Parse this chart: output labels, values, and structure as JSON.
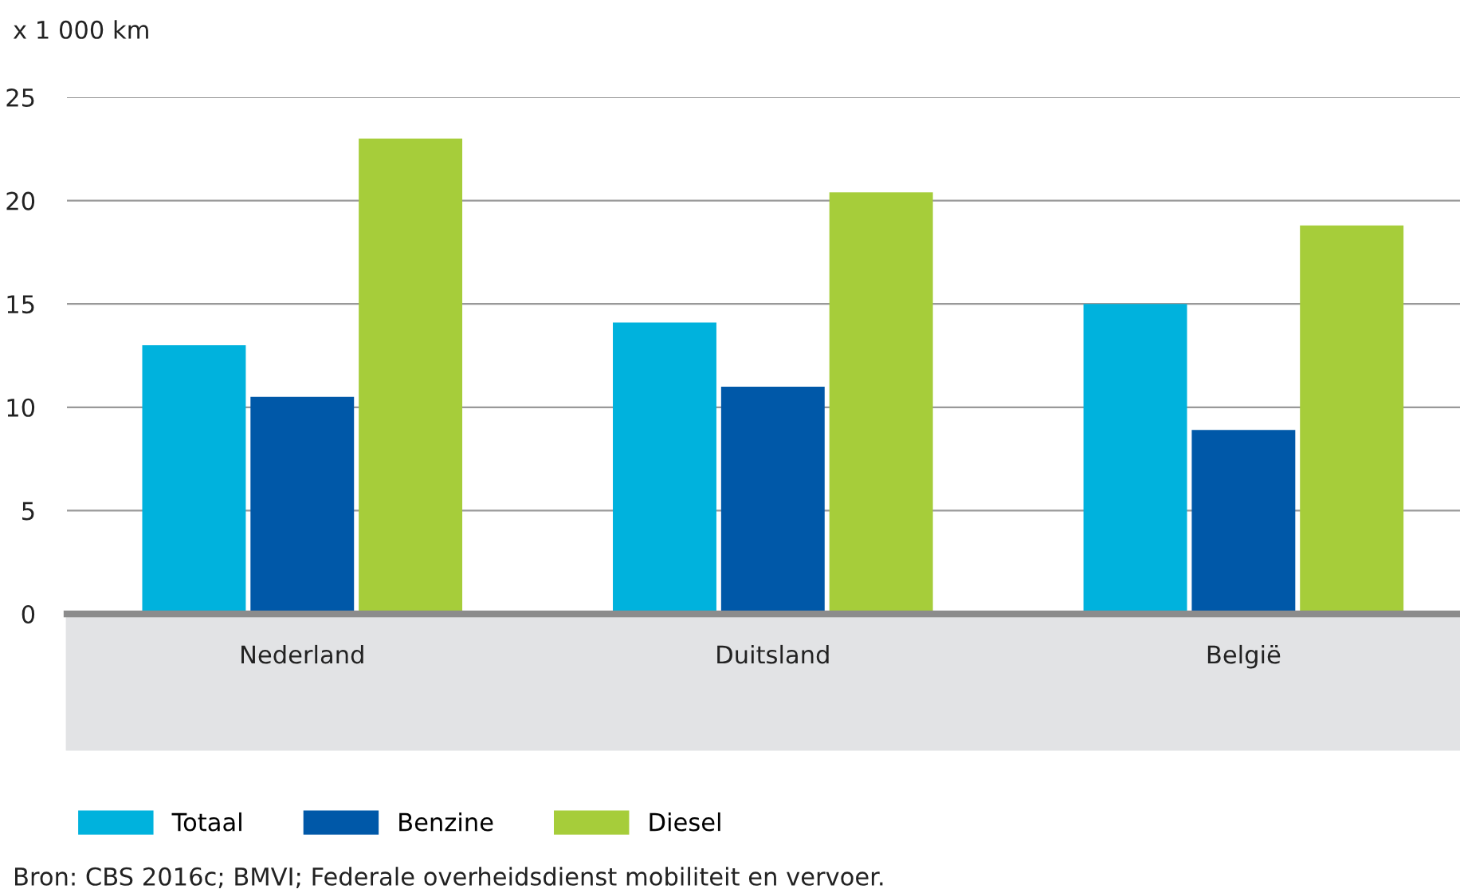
{
  "chart_data": {
    "type": "bar",
    "ylabel": "x 1 000 km",
    "categories": [
      "Nederland",
      "Duitsland",
      "België"
    ],
    "series": [
      {
        "name": "Totaal",
        "color": "#00b2dd",
        "values": [
          13.0,
          14.1,
          15.0
        ]
      },
      {
        "name": "Benzine",
        "color": "#0058a8",
        "values": [
          10.5,
          11.0,
          8.9
        ]
      },
      {
        "name": "Diesel",
        "color": "#a6cd3a",
        "values": [
          23.0,
          20.4,
          18.8
        ]
      }
    ],
    "ylim": [
      0,
      25
    ],
    "yticks": [
      0,
      5,
      10,
      15,
      20,
      25
    ],
    "grid": "y",
    "legend": "bottom left",
    "annotations": [
      "Bron: CBS 2016c; BMVI; Federale overheidsdienst mobiliteit en vervoer."
    ]
  }
}
